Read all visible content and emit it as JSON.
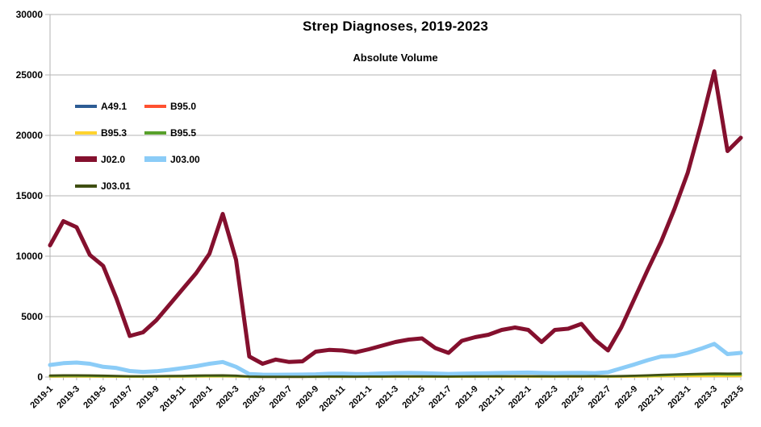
{
  "window": {
    "background": "#ffffff"
  },
  "chart": {
    "title": "Strep Diagnoses, 2019-2023",
    "subtitle": "Absolute Volume"
  },
  "chart_data": {
    "type": "line",
    "title": "Strep Diagnoses, 2019-2023",
    "subtitle": "Absolute Volume",
    "xlabel": "",
    "ylabel": "",
    "ylim": [
      0,
      30000
    ],
    "y_ticks": [
      0,
      5000,
      10000,
      15000,
      20000,
      25000,
      30000
    ],
    "grid": "horizontal",
    "x_label_every": 2,
    "legend_position": "inside-upper-left",
    "colors": {
      "gridline": "#b3b3b3",
      "axis": "#b3b3b3",
      "text": "#000000",
      "background": "#ffffff"
    },
    "categories": [
      "2019-1",
      "2019-2",
      "2019-3",
      "2019-4",
      "2019-5",
      "2019-6",
      "2019-7",
      "2019-8",
      "2019-9",
      "2019-10",
      "2019-11",
      "2019-12",
      "2020-1",
      "2020-2",
      "2020-3",
      "2020-4",
      "2020-5",
      "2020-6",
      "2020-7",
      "2020-8",
      "2020-9",
      "2020-10",
      "2020-11",
      "2020-12",
      "2021-1",
      "2021-2",
      "2021-3",
      "2021-4",
      "2021-5",
      "2021-6",
      "2021-7",
      "2021-8",
      "2021-9",
      "2021-10",
      "2021-11",
      "2021-12",
      "2022-1",
      "2022-2",
      "2022-3",
      "2022-4",
      "2022-5",
      "2022-6",
      "2022-7",
      "2022-8",
      "2022-9",
      "2022-10",
      "2022-11",
      "2022-12",
      "2023-1",
      "2023-2",
      "2023-3",
      "2023-4",
      "2023-5"
    ],
    "series": [
      {
        "name": "A49.1",
        "color": "#2d5c94",
        "thick": false,
        "values": [
          30,
          35,
          40,
          35,
          30,
          25,
          20,
          20,
          25,
          30,
          35,
          40,
          45,
          50,
          40,
          15,
          10,
          10,
          10,
          10,
          15,
          15,
          15,
          15,
          20,
          25,
          30,
          30,
          30,
          25,
          20,
          25,
          25,
          30,
          30,
          35,
          35,
          30,
          30,
          30,
          35,
          30,
          25,
          30,
          40,
          50,
          60,
          70,
          80,
          90,
          100,
          80,
          85
        ]
      },
      {
        "name": "B95.0",
        "color": "#ff5130",
        "thick": false,
        "values": [
          60,
          70,
          70,
          60,
          55,
          40,
          30,
          30,
          35,
          45,
          50,
          60,
          70,
          80,
          60,
          25,
          15,
          15,
          15,
          15,
          20,
          25,
          25,
          25,
          25,
          30,
          35,
          35,
          35,
          30,
          25,
          30,
          35,
          35,
          40,
          40,
          40,
          35,
          35,
          40,
          40,
          40,
          35,
          40,
          55,
          70,
          85,
          100,
          110,
          120,
          130,
          110,
          115
        ]
      },
      {
        "name": "B95.3",
        "color": "#ffd32e",
        "thick": false,
        "values": [
          40,
          45,
          45,
          40,
          35,
          30,
          25,
          25,
          30,
          35,
          40,
          45,
          50,
          55,
          45,
          20,
          12,
          12,
          12,
          12,
          15,
          18,
          18,
          18,
          20,
          22,
          25,
          25,
          25,
          22,
          20,
          22,
          25,
          28,
          30,
          30,
          30,
          28,
          28,
          30,
          32,
          30,
          28,
          32,
          40,
          50,
          60,
          65,
          70,
          75,
          80,
          70,
          72
        ]
      },
      {
        "name": "B95.5",
        "color": "#58a02b",
        "thick": false,
        "values": [
          90,
          100,
          100,
          90,
          80,
          60,
          45,
          45,
          55,
          65,
          75,
          85,
          95,
          105,
          85,
          35,
          22,
          22,
          22,
          24,
          30,
          35,
          35,
          32,
          35,
          40,
          45,
          48,
          48,
          42,
          38,
          44,
          48,
          52,
          56,
          60,
          60,
          55,
          52,
          58,
          60,
          62,
          55,
          65,
          90,
          115,
          140,
          165,
          185,
          200,
          215,
          190,
          195
        ]
      },
      {
        "name": "J02.0",
        "color": "#84102e",
        "thick": true,
        "values": [
          10900,
          12900,
          12400,
          10100,
          9200,
          6500,
          3400,
          3700,
          4700,
          6000,
          7300,
          8600,
          10200,
          13500,
          9700,
          1700,
          1100,
          1450,
          1250,
          1300,
          2100,
          2250,
          2200,
          2050,
          2300,
          2600,
          2900,
          3100,
          3200,
          2400,
          2000,
          3000,
          3300,
          3500,
          3900,
          4100,
          3900,
          2900,
          3900,
          4000,
          4400,
          3100,
          2200,
          4100,
          6500,
          8900,
          11200,
          13900,
          16900,
          20900,
          25300,
          18700,
          19800
        ]
      },
      {
        "name": "J03.00",
        "color": "#8bccf7",
        "thick": true,
        "values": [
          1000,
          1150,
          1200,
          1100,
          850,
          750,
          500,
          430,
          480,
          600,
          750,
          900,
          1100,
          1250,
          850,
          250,
          200,
          190,
          200,
          210,
          230,
          270,
          280,
          250,
          260,
          300,
          330,
          340,
          330,
          290,
          260,
          280,
          300,
          320,
          340,
          360,
          370,
          340,
          330,
          340,
          350,
          330,
          400,
          730,
          1050,
          1400,
          1700,
          1750,
          2000,
          2350,
          2750,
          1900,
          2000
        ]
      },
      {
        "name": "J03.01",
        "color": "#3f4e12",
        "thick": false,
        "values": [
          130,
          150,
          150,
          140,
          120,
          95,
          75,
          70,
          80,
          95,
          110,
          125,
          140,
          150,
          120,
          45,
          30,
          28,
          28,
          30,
          40,
          45,
          45,
          42,
          45,
          50,
          58,
          62,
          62,
          52,
          48,
          55,
          60,
          65,
          70,
          75,
          75,
          70,
          68,
          72,
          75,
          78,
          70,
          85,
          115,
          150,
          185,
          220,
          250,
          275,
          300,
          285,
          290
        ]
      }
    ]
  }
}
